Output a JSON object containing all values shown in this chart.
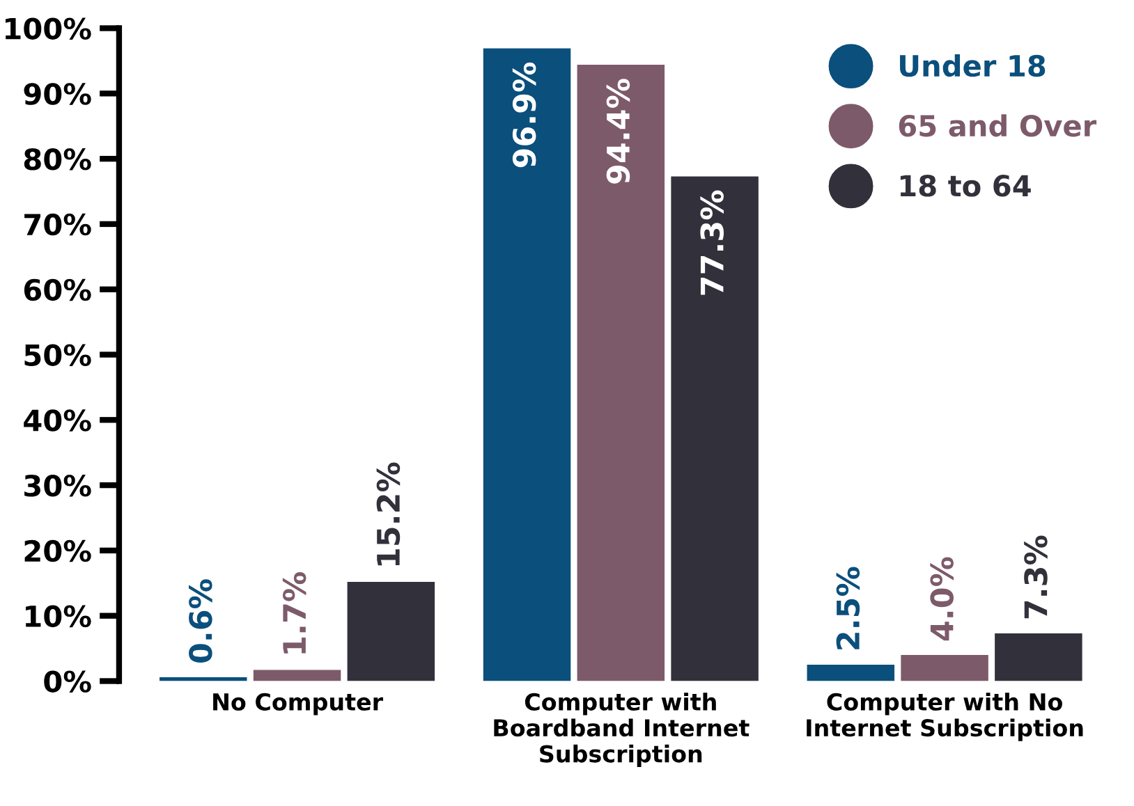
{
  "chart_data": {
    "type": "bar",
    "categories": [
      "No Computer",
      "Computer with\nBoardband Internet\nSubscription",
      "Computer with No\nInternet Subscription"
    ],
    "series": [
      {
        "name": "Under 18",
        "color": "#0b4f7c",
        "values": [
          0.6,
          96.9,
          2.5
        ],
        "value_labels": [
          "0.6%",
          "96.9%",
          "2.5%"
        ]
      },
      {
        "name": "65 and Over",
        "color": "#7d5a6a",
        "values": [
          1.7,
          94.4,
          4.0
        ],
        "value_labels": [
          "1.7%",
          "94.4%",
          "4.0%"
        ]
      },
      {
        "name": "18 to 64",
        "color": "#32313b",
        "values": [
          15.2,
          77.3,
          7.3
        ],
        "value_labels": [
          "15.2%",
          "77.3%",
          "7.3%"
        ]
      }
    ],
    "ylim": [
      0,
      100
    ],
    "yticks": [
      {
        "value": 0,
        "label": "0%"
      },
      {
        "value": 10,
        "label": "10%"
      },
      {
        "value": 20,
        "label": "20%"
      },
      {
        "value": 30,
        "label": "30%"
      },
      {
        "value": 40,
        "label": "40%"
      },
      {
        "value": 50,
        "label": "50%"
      },
      {
        "value": 60,
        "label": "60%"
      },
      {
        "value": 70,
        "label": "70%"
      },
      {
        "value": 80,
        "label": "80%"
      },
      {
        "value": 90,
        "label": "90%"
      },
      {
        "value": 100,
        "label": "100%"
      }
    ],
    "grid": false,
    "legend": "top right"
  }
}
